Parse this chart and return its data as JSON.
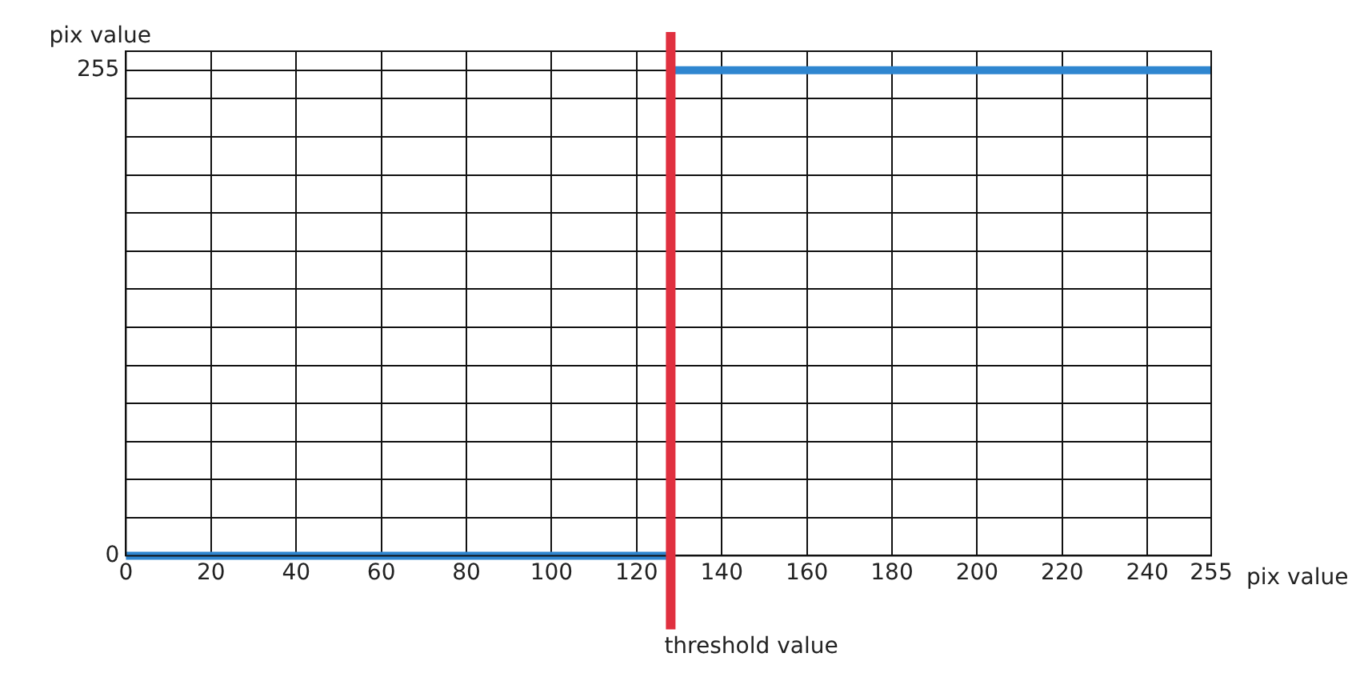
{
  "chart_data": {
    "type": "line",
    "xlabel": "pix value",
    "ylabel": "pix value",
    "series": [
      {
        "x": [
          0,
          128
        ],
        "values": [
          0,
          0
        ],
        "color": "#2f86d0"
      },
      {
        "x": [
          128,
          255
        ],
        "values": [
          255,
          255
        ],
        "color": "#2f86d0"
      }
    ],
    "xlim": [
      0,
      255
    ],
    "xticks": [
      0,
      20,
      40,
      60,
      80,
      100,
      120,
      140,
      160,
      180,
      200,
      220,
      240,
      255
    ],
    "ylim": [
      0,
      265
    ],
    "yticks": [
      0,
      {
        "value": 20,
        "label": null
      },
      {
        "value": 40,
        "label": null
      },
      {
        "value": 60,
        "label": null
      },
      {
        "value": 80,
        "label": null
      },
      {
        "value": 100,
        "label": null
      },
      {
        "value": 120,
        "label": null
      },
      {
        "value": 140,
        "label": null
      },
      {
        "value": 160,
        "label": null
      },
      {
        "value": 180,
        "label": null
      },
      {
        "value": 200,
        "label": null
      },
      {
        "value": 220,
        "label": null
      },
      {
        "value": 240,
        "label": null
      },
      255
    ],
    "ref_lines": [
      {
        "axis": "x",
        "value": 128,
        "label": "threshold value",
        "color": "#e0303f"
      }
    ],
    "grid": true,
    "marker": "none",
    "line_style": "solid"
  }
}
